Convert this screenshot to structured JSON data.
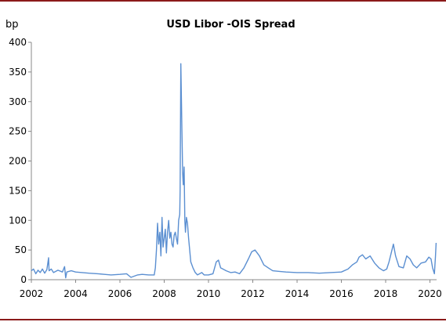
{
  "colors": {
    "frame": "#8b1a1a",
    "line": "#5b8fd1",
    "axis": "#888888"
  },
  "chart_data": {
    "type": "line",
    "title": "USD Libor -OIS Spread",
    "ylabel": "bp",
    "xlabel": "",
    "xlim": [
      2002,
      2020.3
    ],
    "ylim": [
      0,
      400
    ],
    "x_ticks": [
      2002,
      2004,
      2006,
      2008,
      2010,
      2012,
      2014,
      2016,
      2018,
      2020
    ],
    "x_tick_labels": [
      "2002",
      "2004",
      "2006",
      "2008",
      "2010",
      "2012",
      "2014",
      "2016",
      "2018",
      "2020"
    ],
    "y_ticks": [
      0,
      50,
      100,
      150,
      200,
      250,
      300,
      350,
      400
    ],
    "y_tick_labels": [
      "0",
      "50",
      "100",
      "150",
      "200",
      "250",
      "300",
      "350",
      "400"
    ],
    "grid": false,
    "legend": "none",
    "series": [
      {
        "x": [
          2002.0,
          2002.1,
          2002.2,
          2002.3,
          2002.4,
          2002.5,
          2002.6,
          2002.7,
          2002.78,
          2002.8,
          2002.9,
          2003.0,
          2003.2,
          2003.4,
          2003.5,
          2003.55,
          2003.6,
          2003.8,
          2004.0,
          2004.3,
          2004.6,
          2005.0,
          2005.3,
          2005.6,
          2006.0,
          2006.3,
          2006.5,
          2006.8,
          2007.0,
          2007.3,
          2007.55,
          2007.6,
          2007.65,
          2007.7,
          2007.75,
          2007.8,
          2007.85,
          2007.9,
          2007.95,
          2008.0,
          2008.05,
          2008.1,
          2008.15,
          2008.2,
          2008.25,
          2008.3,
          2008.35,
          2008.4,
          2008.45,
          2008.5,
          2008.55,
          2008.6,
          2008.65,
          2008.7,
          2008.72,
          2008.75,
          2008.78,
          2008.8,
          2008.83,
          2008.86,
          2008.9,
          2008.93,
          2008.96,
          2009.0,
          2009.05,
          2009.1,
          2009.15,
          2009.2,
          2009.3,
          2009.4,
          2009.5,
          2009.6,
          2009.7,
          2009.8,
          2010.0,
          2010.2,
          2010.35,
          2010.45,
          2010.55,
          2010.65,
          2010.8,
          2011.0,
          2011.2,
          2011.4,
          2011.6,
          2011.8,
          2011.95,
          2012.1,
          2012.3,
          2012.5,
          2012.7,
          2012.9,
          2013.2,
          2013.5,
          2014.0,
          2014.5,
          2015.0,
          2015.5,
          2016.0,
          2016.3,
          2016.5,
          2016.7,
          2016.8,
          2016.95,
          2017.1,
          2017.3,
          2017.5,
          2017.7,
          2017.9,
          2018.05,
          2018.15,
          2018.25,
          2018.35,
          2018.45,
          2018.6,
          2018.8,
          2018.95,
          2019.1,
          2019.25,
          2019.4,
          2019.6,
          2019.8,
          2019.95,
          2020.05,
          2020.12,
          2020.2,
          2020.25,
          2020.28
        ],
        "y": [
          15,
          18,
          10,
          16,
          12,
          18,
          11,
          17,
          37,
          15,
          18,
          12,
          16,
          13,
          22,
          3,
          13,
          15,
          13,
          12,
          11,
          10,
          9,
          8,
          9,
          10,
          4,
          8,
          9,
          8,
          8,
          20,
          50,
          95,
          60,
          80,
          40,
          105,
          55,
          70,
          85,
          45,
          80,
          100,
          70,
          80,
          60,
          55,
          75,
          80,
          70,
          60,
          100,
          110,
          150,
          364,
          300,
          250,
          180,
          160,
          190,
          100,
          80,
          105,
          95,
          70,
          50,
          30,
          20,
          12,
          8,
          10,
          12,
          8,
          8,
          10,
          30,
          33,
          20,
          18,
          15,
          12,
          13,
          10,
          20,
          35,
          47,
          50,
          40,
          25,
          20,
          15,
          14,
          13,
          12,
          12,
          11,
          12,
          13,
          18,
          25,
          30,
          38,
          42,
          35,
          40,
          28,
          20,
          15,
          18,
          30,
          45,
          60,
          40,
          22,
          20,
          40,
          35,
          25,
          20,
          28,
          30,
          38,
          35,
          20,
          10,
          40,
          62
        ]
      }
    ]
  }
}
